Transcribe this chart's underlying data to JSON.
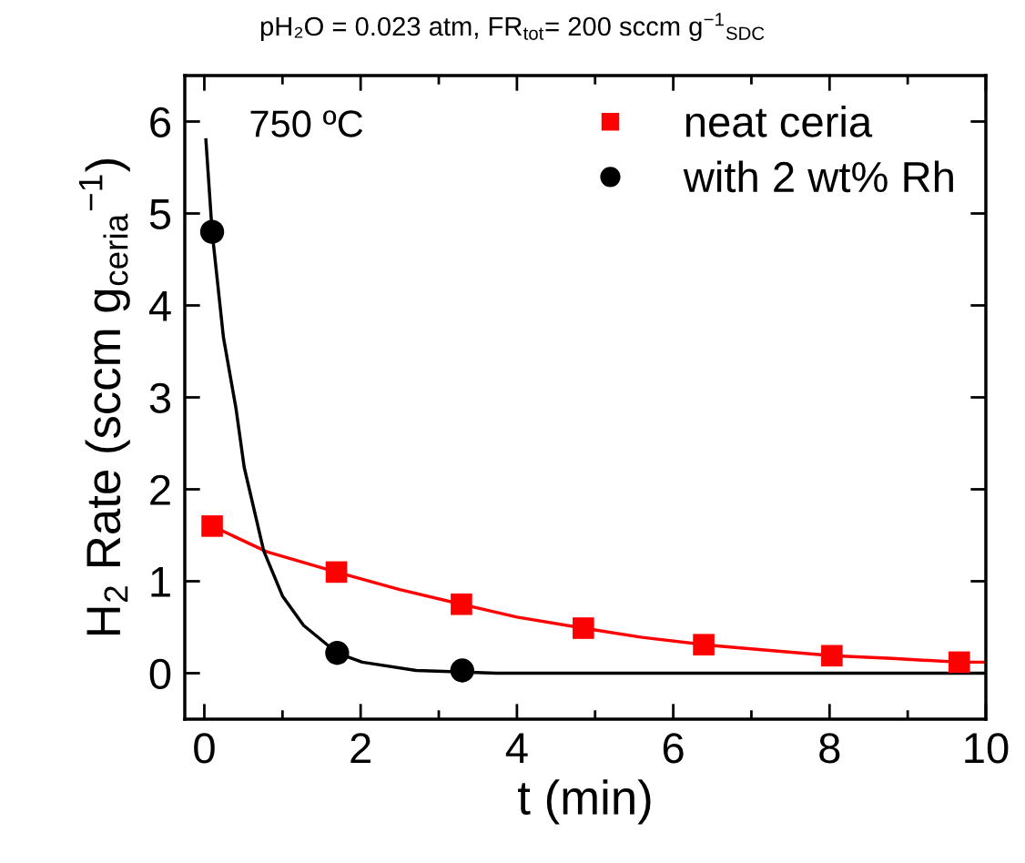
{
  "chart_data": {
    "type": "scatter",
    "title": "pH₂O = 0.023 atm, FR$_{tot}$= 200 sccm g$^{−1}$$_{SDC}$",
    "xlabel": "t (min)",
    "ylabel": "H$_{2}$ Rate (sccm g$_{ceria}$$^{−1}$)",
    "annotations": [
      "750 ºC"
    ],
    "xlim": [
      -0.25,
      10
    ],
    "xticks": [
      0,
      {
        "value": 1,
        "label": null
      },
      2,
      {
        "value": 3,
        "label": null
      },
      4,
      {
        "value": 5,
        "label": null
      },
      6,
      {
        "value": 7,
        "label": null
      },
      8,
      {
        "value": 9,
        "label": null
      },
      10
    ],
    "ylim": [
      -0.5,
      6.5
    ],
    "yticks": [
      0,
      1,
      2,
      3,
      4,
      5,
      6
    ],
    "grid": false,
    "legend": "top right",
    "series": [
      {
        "name": "neat ceria",
        "marker": "square",
        "color": "#ff0000",
        "x": [
          0.1,
          1.69,
          3.29,
          4.85,
          6.39,
          8.03,
          9.66
        ],
        "values": [
          1.6,
          1.1,
          0.75,
          0.49,
          0.31,
          0.19,
          0.12
        ]
      },
      {
        "name": "with 2 wt% Rh",
        "marker": "circle",
        "color": "#000000",
        "x": [
          0.1,
          1.7,
          3.3
        ],
        "values": [
          4.8,
          0.22,
          0.03
        ]
      },
      {
        "type": "line",
        "marker": "none",
        "color": "#ff0000",
        "x": [
          0.1,
          0.8,
          1.69,
          2.5,
          3.29,
          4.0,
          4.85,
          5.6,
          6.39,
          7.2,
          8.03,
          8.8,
          9.66,
          10
        ],
        "values": [
          1.6,
          1.32,
          1.1,
          0.91,
          0.75,
          0.61,
          0.49,
          0.39,
          0.31,
          0.25,
          0.19,
          0.16,
          0.12,
          0.12
        ]
      },
      {
        "type": "line",
        "marker": "none",
        "color": "#000000",
        "x": [
          0.02,
          0.1,
          0.245,
          0.405,
          0.51,
          0.76,
          1.0,
          1.27,
          1.7,
          2.02,
          2.71,
          3.74,
          5,
          7,
          10
        ],
        "values": [
          5.8,
          4.8,
          3.65,
          2.88,
          2.24,
          1.33,
          0.84,
          0.52,
          0.22,
          0.12,
          0.03,
          0.0,
          0.0,
          0.0,
          0.0
        ]
      }
    ]
  }
}
